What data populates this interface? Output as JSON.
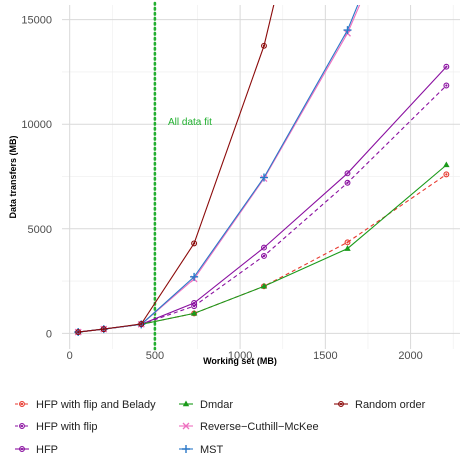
{
  "chart_data": {
    "type": "line",
    "xlabel": "Working set (MB)",
    "ylabel": "Data transfers (MB)",
    "xlim": [
      -45,
      2290
    ],
    "ylim": [
      -750,
      15700
    ],
    "xticks": [
      0,
      500,
      1000,
      1500,
      2000
    ],
    "xtick_labels": [
      "0",
      "500",
      "1000",
      "1500",
      "2000"
    ],
    "yticks": [
      0,
      5000,
      10000,
      15000
    ],
    "ytick_labels": [
      "0",
      "5000",
      "10000",
      "15000"
    ],
    "grid": true,
    "legend_position": "bottom",
    "reference_line": {
      "x": 500,
      "color": "#22b030",
      "label": "All data fit"
    },
    "series": [
      {
        "name": "HFP with flip and Belady",
        "color": "#e8392f",
        "marker": "circle",
        "dashed": true,
        "x": [
          50,
          200,
          420,
          730,
          1140,
          1630,
          2210
        ],
        "y": [
          60,
          200,
          430,
          950,
          2250,
          4350,
          7600
        ]
      },
      {
        "name": "HFP with flip",
        "color": "#8a10a0",
        "marker": "circle",
        "dashed": true,
        "x": [
          50,
          200,
          420,
          730,
          1140,
          1630,
          2210
        ],
        "y": [
          60,
          200,
          430,
          1300,
          3700,
          7200,
          11850
        ]
      },
      {
        "name": "HFP",
        "color": "#8a10a0",
        "marker": "circle",
        "dashed": false,
        "x": [
          50,
          200,
          420,
          730,
          1140,
          1630,
          2210
        ],
        "y": [
          60,
          200,
          430,
          1450,
          4100,
          7650,
          12750
        ]
      },
      {
        "name": "Dmdar",
        "color": "#1a9a1a",
        "marker": "triangle",
        "dashed": false,
        "x": [
          50,
          200,
          420,
          730,
          1140,
          1630,
          2210
        ],
        "y": [
          60,
          200,
          430,
          950,
          2250,
          4050,
          8050
        ]
      },
      {
        "name": "Reverse−Cuthill−McKee",
        "color": "#ee70c0",
        "marker": "x",
        "dashed": false,
        "x": [
          50,
          200,
          420,
          730,
          1140,
          1630,
          1780
        ],
        "y": [
          60,
          200,
          430,
          2600,
          7400,
          14350,
          17200
        ]
      },
      {
        "name": "MST",
        "color": "#2a78c8",
        "marker": "plus",
        "dashed": false,
        "x": [
          50,
          200,
          420,
          730,
          1140,
          1630,
          1780
        ],
        "y": [
          60,
          200,
          430,
          2700,
          7450,
          14500,
          17500
        ]
      },
      {
        "name": "Random order",
        "color": "#8b0a0a",
        "marker": "circle",
        "dashed": false,
        "x": [
          50,
          200,
          420,
          730,
          1140,
          1280
        ],
        "y": [
          60,
          200,
          450,
          4300,
          13750,
          18500
        ]
      }
    ]
  }
}
